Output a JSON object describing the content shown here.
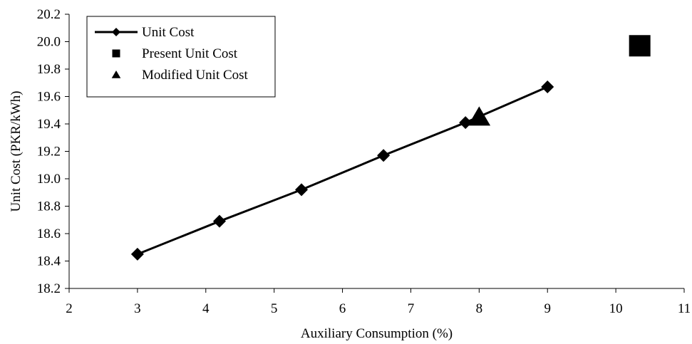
{
  "chart_data": {
    "type": "scatter",
    "xlabel": "Auxiliary Consumption (%)",
    "ylabel": "Unit Cost (PKR/kWh)",
    "xlim": [
      2,
      11
    ],
    "ylim": [
      18.2,
      20.2
    ],
    "x_ticks": [
      "2",
      "3",
      "4",
      "5",
      "6",
      "7",
      "8",
      "9",
      "10",
      "11"
    ],
    "y_ticks": [
      "18.2",
      "18.4",
      "18.6",
      "18.8",
      "19.0",
      "19.2",
      "19.4",
      "19.6",
      "19.8",
      "20.0",
      "20.2"
    ],
    "grid": false,
    "legend_position": "top-left",
    "series": [
      {
        "name": "Unit Cost",
        "style": "line-diamond",
        "color": "#000000",
        "x": [
          3,
          4.2,
          5.4,
          6.6,
          7.8,
          9
        ],
        "y": [
          18.45,
          18.69,
          18.92,
          19.17,
          19.41,
          19.67
        ]
      },
      {
        "name": "Present Unit Cost",
        "style": "square",
        "color": "#000000",
        "x": [
          10.35
        ],
        "y": [
          19.97
        ]
      },
      {
        "name": "Modified Unit Cost",
        "style": "triangle",
        "color": "#000000",
        "x": [
          8
        ],
        "y": [
          19.45
        ]
      }
    ]
  }
}
